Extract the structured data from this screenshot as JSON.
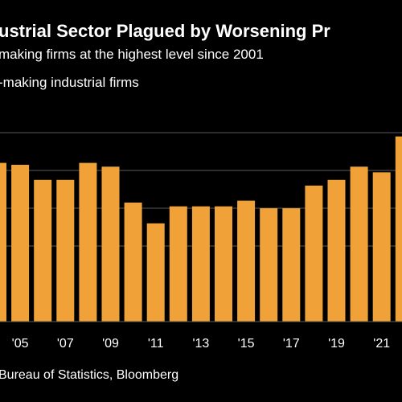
{
  "header": {
    "title": "ustrial Sector Plagued by Worsening Pr",
    "subtitle": "making firms at the highest level since 2001",
    "series_label": "-making industrial firms"
  },
  "footer": {
    "source": "Bureau of Statistics, Bloomberg"
  },
  "colors": {
    "background": "#000000",
    "bar": "#f0a238",
    "grid": "#5a5a5a",
    "text": "#ffffff"
  },
  "chart_data": {
    "type": "bar",
    "categories": [
      "'04",
      "'05",
      "'06",
      "'07",
      "'08",
      "'09",
      "'10",
      "'11",
      "'12",
      "'13",
      "'14",
      "'15",
      "'16",
      "'17",
      "'18",
      "'19",
      "'20",
      "'21",
      "'22"
    ],
    "x_tick_labels": [
      "'05",
      "'07",
      "'09",
      "'11",
      "'13",
      "'15",
      "'17",
      "'19",
      "'21"
    ],
    "values": [
      84,
      83,
      75,
      75,
      84,
      82,
      63,
      52,
      61,
      61,
      61,
      64,
      60,
      60,
      72,
      75,
      82,
      79,
      98
    ],
    "grid": true
  }
}
